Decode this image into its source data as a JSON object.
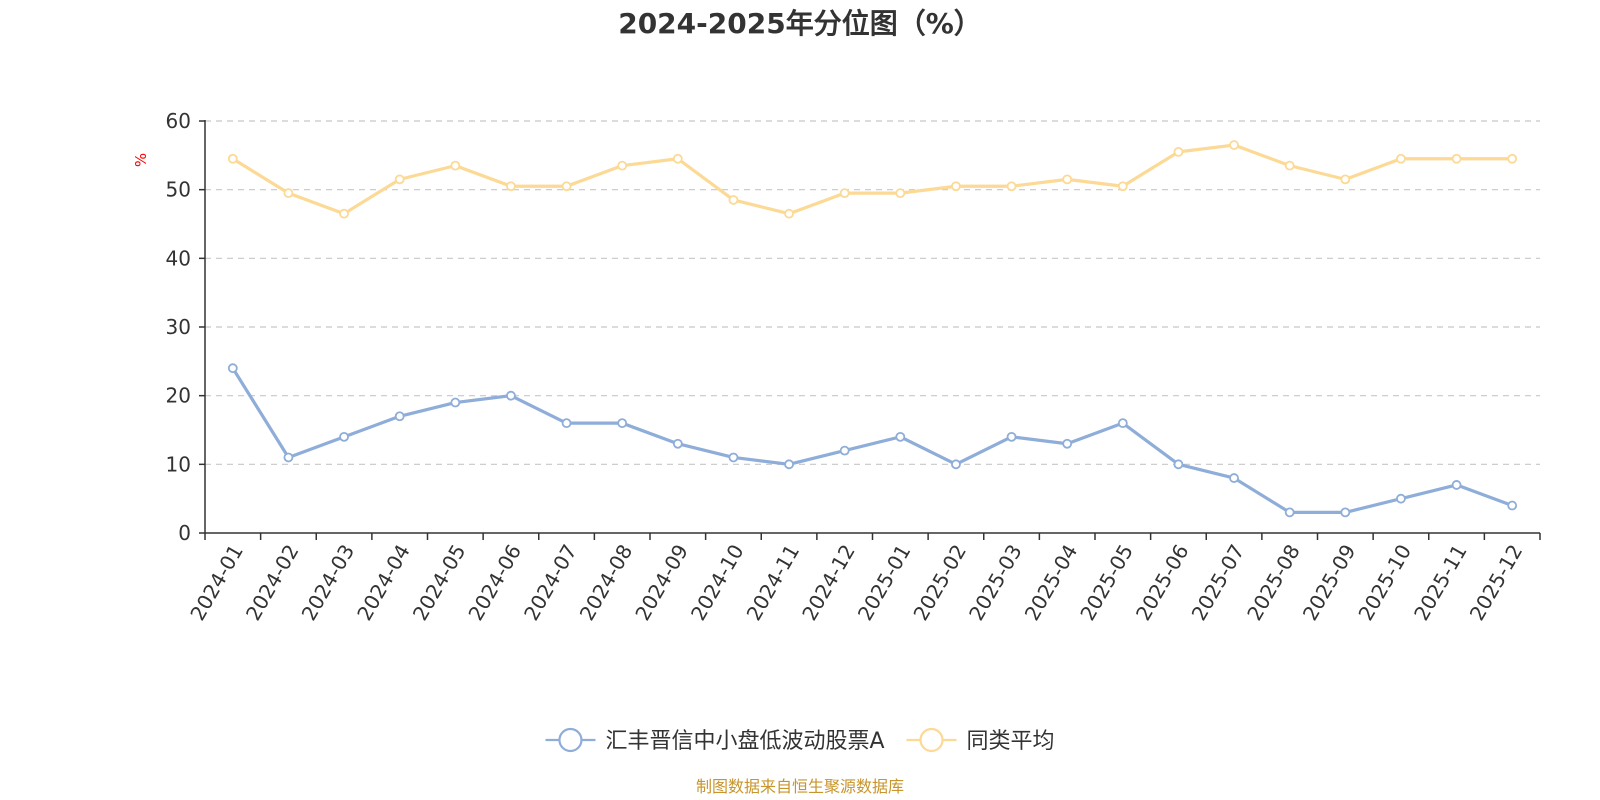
{
  "colors": {
    "series1": "#8eadd9",
    "series2": "#fcd995",
    "grid": "#c8c8c8",
    "axis": "#333333",
    "unit": "#ff0000",
    "source": "#c7952b",
    "text": "#333333"
  },
  "chart_data": {
    "type": "line",
    "title": "2024-2025年分位图（%）",
    "ylabel": "%",
    "xlabel": "",
    "ylim": [
      0,
      60
    ],
    "yticks": [
      0,
      10,
      20,
      30,
      40,
      50,
      60
    ],
    "grid": true,
    "legend_position": "bottom-center",
    "categories": [
      "2024-01",
      "2024-02",
      "2024-03",
      "2024-04",
      "2024-05",
      "2024-06",
      "2024-07",
      "2024-08",
      "2024-09",
      "2024-10",
      "2024-11",
      "2024-12",
      "2025-01",
      "2025-02",
      "2025-03",
      "2025-04",
      "2025-05",
      "2025-06",
      "2025-07",
      "2025-08",
      "2025-09",
      "2025-10",
      "2025-11",
      "2025-12"
    ],
    "series": [
      {
        "name": "汇丰晋信中小盘低波动股票A",
        "values": [
          24,
          11,
          14,
          17,
          19,
          20,
          16,
          16,
          13,
          11,
          10,
          12,
          14,
          10,
          14,
          13,
          16,
          10,
          8,
          3,
          3,
          5,
          7,
          4
        ]
      },
      {
        "name": "同类平均",
        "values": [
          54.5,
          49.5,
          46.5,
          51.5,
          53.5,
          50.5,
          50.5,
          53.5,
          54.5,
          48.5,
          46.5,
          49.5,
          49.5,
          50.5,
          50.5,
          51.5,
          50.5,
          55.5,
          56.5,
          53.5,
          51.5,
          54.5,
          54.5,
          54.5
        ]
      }
    ]
  },
  "source_text": "制图数据来自恒生聚源数据库"
}
